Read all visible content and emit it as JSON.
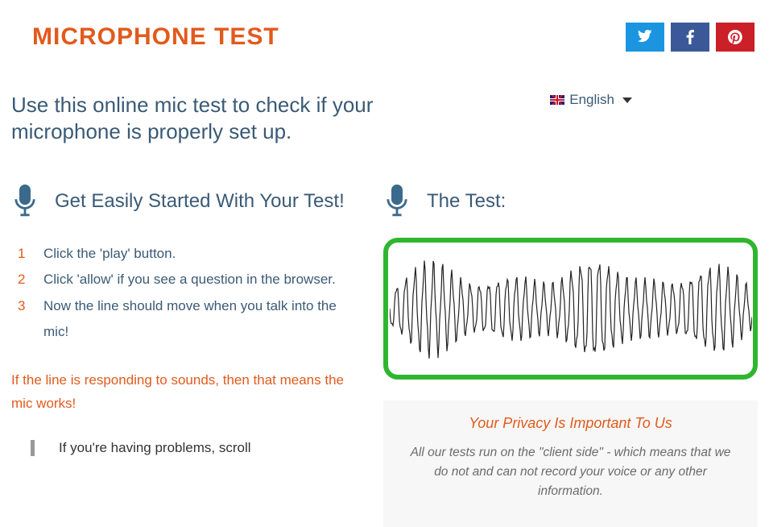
{
  "header": {
    "title": "MICROPHONE TEST",
    "social": {
      "twitter": "twitter",
      "facebook": "facebook",
      "pinterest": "pinterest"
    }
  },
  "tagline": "Use this online mic test to check if your microphone is properly set up.",
  "language": {
    "label": "English"
  },
  "left": {
    "section_title": "Get Easily Started With Your Test!",
    "steps": [
      "Click the 'play' button.",
      "Click 'allow' if you see a question in the browser.",
      "Now the line should move when you talk into the mic!"
    ],
    "works_note": "If the line is responding to sounds, then that means the mic works!",
    "troubleshoot": "If you're having problems, scroll"
  },
  "right": {
    "section_title": "The Test:",
    "privacy_title": "Your Privacy Is Important To Us",
    "privacy_body": "All our tests run on the \"client side\" - which means that we do not and can not record your voice or any other information."
  },
  "colors": {
    "accent": "#e25a1c",
    "text": "#3a5a75",
    "twitter": "#1b95e0",
    "facebook": "#3b5998",
    "pinterest": "#cb2027",
    "wave_border": "#2fb62f",
    "privacy_bg": "#f7f7f7"
  }
}
